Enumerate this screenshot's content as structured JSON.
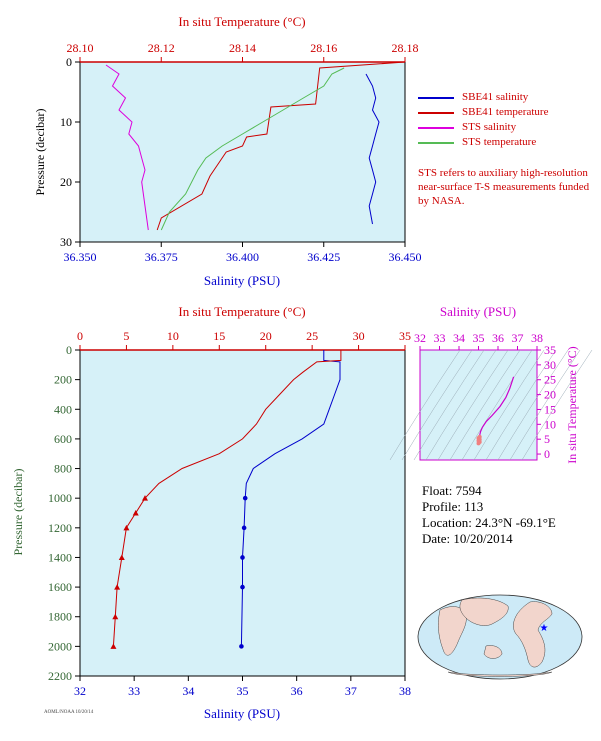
{
  "legend": {
    "items": [
      {
        "label": "SBE41 salinity",
        "color": "#0000cc"
      },
      {
        "label": "SBE41 temperature",
        "color": "#cc0000"
      },
      {
        "label": "STS salinity",
        "color": "#dd00dd"
      },
      {
        "label": "STS temperature",
        "color": "#55bb55"
      }
    ]
  },
  "note": "STS refers to auxiliary high-resolution near-surface T-S measurements funded by NASA.",
  "info": {
    "float": "Float:  7594",
    "profile": "Profile:  113",
    "location": "Location:  24.3°N  -69.1°E",
    "date": "Date:  10/20/2014"
  },
  "credit": "AOML/NOAA 10/20/14",
  "colors": {
    "plot_bg": "#d6f1f8",
    "salinity": "#0000cc",
    "temperature": "#cc0000",
    "sts_salinity": "#dd00dd",
    "sts_temperature": "#55bb55",
    "ts_axis": "#cc00cc",
    "pressure_label": "#336633"
  },
  "chart_data": [
    {
      "type": "line",
      "xlabel": "Salinity (PSU)",
      "x2label": "In situ Temperature (°C)",
      "ylabel": "Pressure (decibar)",
      "xlim": [
        36.35,
        36.45
      ],
      "x2lim": [
        28.1,
        28.18
      ],
      "ylim": [
        30,
        0
      ],
      "xticks": [
        "36.350",
        "36.375",
        "36.400",
        "36.425",
        "36.450"
      ],
      "x2ticks": [
        "28.10",
        "28.12",
        "28.14",
        "28.16",
        "28.18"
      ],
      "yticks": [
        "0",
        "10",
        "20",
        "30"
      ],
      "series": [
        {
          "name": "SBE41 salinity",
          "axis": "x",
          "x": [
            36.438,
            36.44,
            36.441,
            36.44,
            36.442,
            36.441,
            36.44,
            36.439,
            36.44,
            36.441,
            36.44,
            36.439,
            36.44
          ],
          "y": [
            2,
            4,
            6,
            8,
            10,
            12,
            14,
            16,
            18,
            20,
            22,
            24,
            27
          ]
        },
        {
          "name": "SBE41 temperature",
          "axis": "x2",
          "x": [
            28.18,
            28.159,
            28.158,
            28.147,
            28.146,
            28.141,
            28.14,
            28.136,
            28.134,
            28.132,
            28.13,
            28.12,
            28.119
          ],
          "y": [
            0,
            1,
            7,
            7.5,
            12,
            12.5,
            14,
            15,
            17,
            19,
            22,
            26,
            28
          ]
        },
        {
          "name": "STS salinity",
          "axis": "x",
          "x": [
            36.358,
            36.362,
            36.36,
            36.364,
            36.362,
            36.366,
            36.365,
            36.368,
            36.369,
            36.37,
            36.369,
            36.37,
            36.371
          ],
          "y": [
            0.5,
            2,
            4,
            6,
            8,
            10,
            12,
            14,
            16,
            18,
            20,
            24,
            28
          ]
        },
        {
          "name": "STS temperature",
          "axis": "x2",
          "x": [
            28.165,
            28.162,
            28.16,
            28.155,
            28.15,
            28.145,
            28.14,
            28.135,
            28.131,
            28.129,
            28.126,
            28.122,
            28.12
          ],
          "y": [
            1,
            2,
            4,
            6,
            8,
            10,
            12,
            14,
            16,
            18,
            22,
            25,
            28
          ]
        }
      ]
    },
    {
      "type": "line",
      "xlabel": "Salinity (PSU)",
      "x2label": "In situ Temperature (°C)",
      "ylabel": "Pressure (decibar)",
      "xlim": [
        32,
        38
      ],
      "x2lim": [
        0,
        35
      ],
      "ylim": [
        2200,
        0
      ],
      "xticks": [
        "32",
        "33",
        "34",
        "35",
        "36",
        "37",
        "38"
      ],
      "x2ticks": [
        "0",
        "5",
        "10",
        "15",
        "20",
        "25",
        "30",
        "35"
      ],
      "yticks": [
        "0",
        "200",
        "400",
        "600",
        "800",
        "1000",
        "1200",
        "1400",
        "1600",
        "1800",
        "2000",
        "2200"
      ],
      "series": [
        {
          "name": "SBE41 salinity",
          "axis": "x",
          "x": [
            36.5,
            36.5,
            36.8,
            36.8,
            36.7,
            36.6,
            36.55,
            36.5,
            36.1,
            35.6,
            35.2,
            35.07,
            35.05,
            35.03,
            35.0,
            35.0,
            34.98
          ],
          "y": [
            0,
            70,
            80,
            200,
            300,
            400,
            450,
            500,
            600,
            700,
            800,
            900,
            1000,
            1200,
            1400,
            1600,
            2000
          ],
          "markers_from": 1000
        },
        {
          "name": "SBE41 temperature",
          "axis": "x2",
          "x": [
            28.1,
            28.1,
            25.5,
            24.0,
            23.0,
            21.5,
            20.0,
            19.0,
            17.5,
            15.0,
            11.0,
            8.5,
            7.0,
            6.0,
            5.0,
            4.5,
            4.0,
            3.8,
            3.6
          ],
          "y": [
            0,
            70,
            80,
            150,
            200,
            300,
            400,
            500,
            600,
            700,
            800,
            900,
            1000,
            1100,
            1200,
            1400,
            1600,
            1800,
            2000
          ],
          "markers_from": 1000
        }
      ]
    },
    {
      "type": "scatter",
      "xlabel": "Salinity (PSU)",
      "ylabel": "In situ Temperature (°C)",
      "xlim": [
        32,
        38
      ],
      "ylim": [
        -2,
        35
      ],
      "xticks": [
        "32",
        "33",
        "34",
        "35",
        "36",
        "37",
        "38"
      ],
      "yticks": [
        "0",
        "5",
        "10",
        "15",
        "20",
        "25",
        "30",
        "35"
      ],
      "series": [
        {
          "name": "T-S",
          "x": [
            35.0,
            35.0,
            35.05,
            35.1,
            35.2,
            35.4,
            35.7,
            36.1,
            36.4,
            36.6,
            36.7,
            36.8
          ],
          "y": [
            3.6,
            4.5,
            6.0,
            7.5,
            9.0,
            11.0,
            13.0,
            16.0,
            19.0,
            22.0,
            24.0,
            26.0
          ]
        }
      ]
    }
  ]
}
